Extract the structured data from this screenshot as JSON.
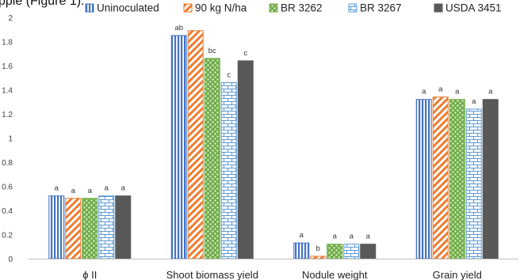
{
  "page_fragment": "pple (Figure 1).",
  "chart_data": {
    "type": "bar",
    "categories": [
      "ϕ II",
      "Shoot biomass yield",
      "Nodule weight",
      "Grain yield"
    ],
    "series": [
      {
        "name": "Uninoculated",
        "color": "#4472C4",
        "pattern": "vertical-stripes",
        "values": [
          0.52,
          1.85,
          0.13,
          1.32
        ],
        "labels": [
          "a",
          "ab",
          "a",
          "a"
        ]
      },
      {
        "name": "90 kg N/ha",
        "color": "#ED7D31",
        "pattern": "diagonal-stripes",
        "values": [
          0.5,
          1.89,
          0.02,
          1.34
        ],
        "labels": [
          "a",
          "",
          "b",
          "a"
        ]
      },
      {
        "name": "BR 3262",
        "color": "#70AD47",
        "pattern": "checker",
        "values": [
          0.5,
          1.66,
          0.12,
          1.32
        ],
        "labels": [
          "a",
          "bc",
          "a",
          "a"
        ]
      },
      {
        "name": "BR 3267",
        "color": "#5B9BD5",
        "pattern": "brick",
        "values": [
          0.52,
          1.46,
          0.12,
          1.24
        ],
        "labels": [
          "a",
          "c",
          "a",
          "a"
        ]
      },
      {
        "name": "USDA 3451",
        "color": "#595959",
        "pattern": "solid",
        "values": [
          0.52,
          1.64,
          0.12,
          1.32
        ],
        "labels": [
          "a",
          "c",
          "a",
          "a"
        ]
      }
    ],
    "y_ticks": [
      "0",
      "0.2",
      "0.4",
      "0.6",
      "0.8",
      "1",
      "1.2",
      "1.4",
      "1.6",
      "1.8",
      "2"
    ],
    "ylim": [
      0,
      2
    ],
    "grid": false,
    "legend_position": "top",
    "title": "",
    "xlabel": "",
    "ylabel": ""
  }
}
